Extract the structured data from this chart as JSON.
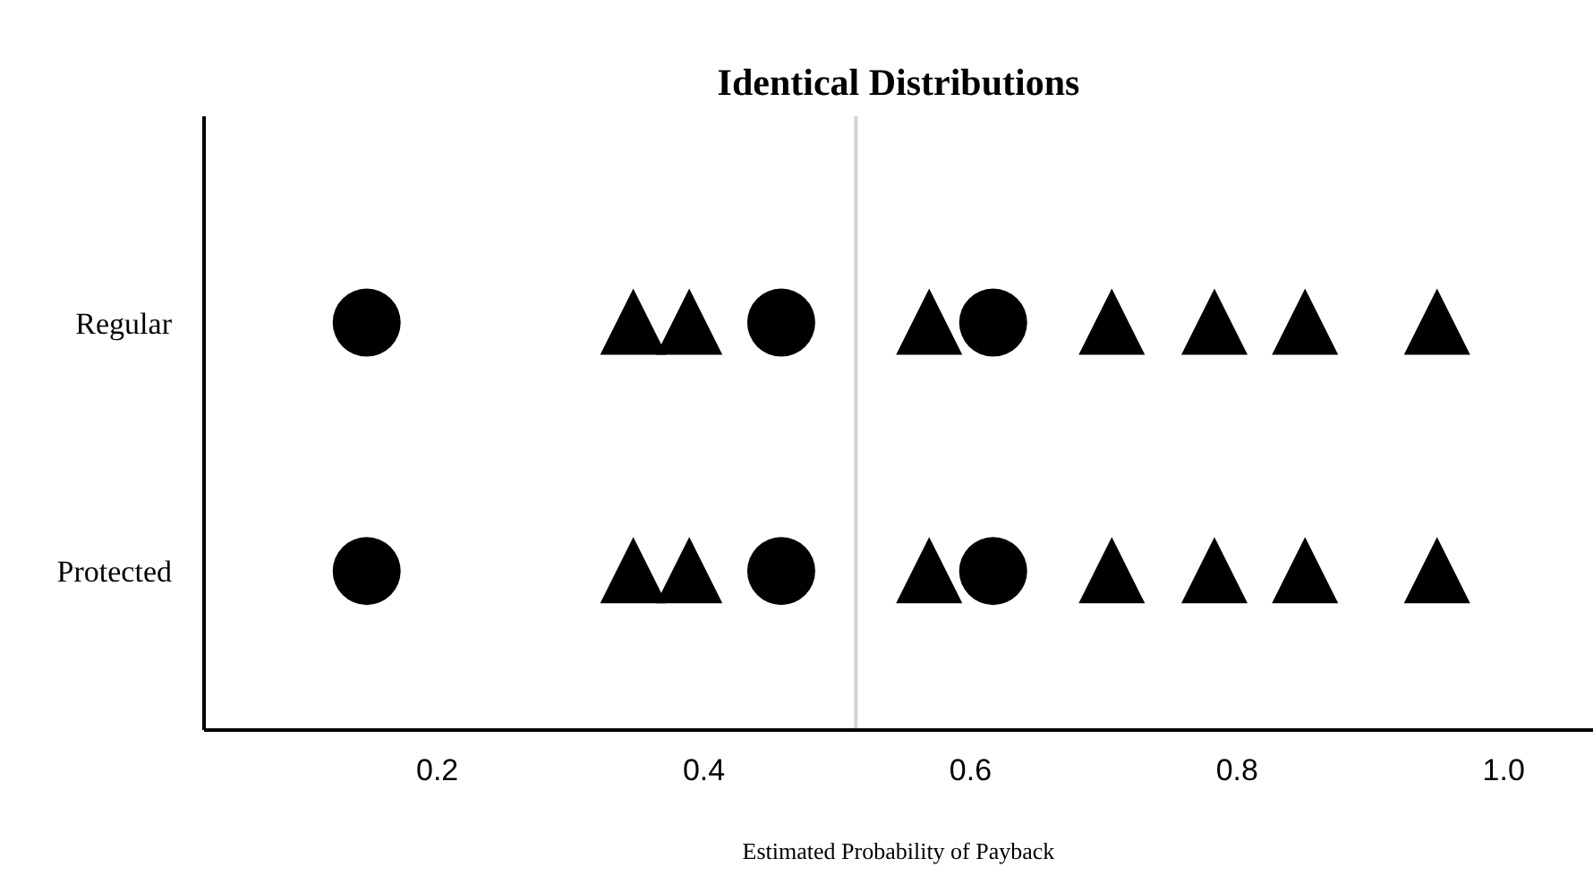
{
  "chart_data": {
    "type": "scatter",
    "title": "Identical Distributions",
    "xlabel": "Estimated Probability of Payback",
    "orientation": "horizontal",
    "categories": [
      "Regular",
      "Protected"
    ],
    "series": [
      {
        "color": "#000000",
        "marker": "circle",
        "x": [
          "Regular",
          "Regular",
          "Regular",
          "Protected",
          "Protected",
          "Protected"
        ],
        "values": [
          0.147,
          0.458,
          0.617,
          0.147,
          0.458,
          0.617
        ]
      },
      {
        "color": "#000000",
        "marker": "triangle",
        "x": [
          "Regular",
          "Regular",
          "Regular",
          "Regular",
          "Regular",
          "Regular",
          "Regular",
          "Protected",
          "Protected",
          "Protected",
          "Protected",
          "Protected",
          "Protected",
          "Protected"
        ],
        "values": [
          0.347,
          0.389,
          0.569,
          0.706,
          0.783,
          0.851,
          0.95,
          0.347,
          0.389,
          0.569,
          0.706,
          0.783,
          0.851,
          0.95
        ]
      }
    ],
    "xlim": [
      0.025,
      1.067
    ],
    "xticks": [
      0.2,
      0.4,
      0.6,
      0.8,
      {
        "value": 1,
        "label": "1.0"
      }
    ],
    "ref_lines": [
      {
        "axis": "x",
        "value": 0.514,
        "color": "#d3d3d3"
      }
    ],
    "grid": false,
    "legend": false
  }
}
